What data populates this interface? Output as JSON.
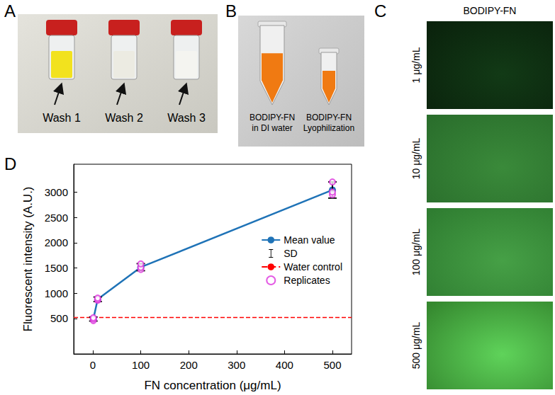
{
  "panels": {
    "A": {
      "letter": "A",
      "labels": [
        "Wash 1",
        "Wash 2",
        "Wash 3"
      ]
    },
    "B": {
      "letter": "B",
      "labels": [
        "BODIPY-FN in DI water",
        "BODIPY-FN Lyophilization"
      ]
    },
    "C": {
      "letter": "C",
      "title": "BODIPY-FN",
      "rows": [
        "1 μg/mL",
        "10 μg/mL",
        "100 μg/mL",
        "500 μg/mL"
      ]
    }
  },
  "chart_data": {
    "letter": "D",
    "type": "line",
    "x_label": "FN concentration (μg/mL)",
    "y_label": "Fluorescent intensity (A.U.)",
    "x": [
      1,
      10,
      100,
      500
    ],
    "series": [
      {
        "name": "Mean value",
        "color": "#1f73b7",
        "marker": "circle",
        "line_style": "solid",
        "values": [
          490,
          880,
          1515,
          3040
        ],
        "sd": [
          40,
          45,
          70,
          160
        ]
      }
    ],
    "error_bar_name": "SD",
    "error_bar_color": "#000000",
    "reference_line": {
      "name": "Water control",
      "value": 520,
      "color": "#ff0000",
      "line_style": "dashed"
    },
    "replicates": {
      "name": "Replicates",
      "color": "#dd33dd",
      "marker": "open_circle",
      "values": [
        [
          460,
          490,
          515
        ],
        [
          860,
          880,
          905
        ],
        [
          1470,
          1510,
          1580
        ],
        [
          2950,
          3000,
          3200
        ]
      ]
    },
    "xlim": [
      -40,
      540
    ],
    "xticks": [
      0,
      100,
      200,
      300,
      400,
      500
    ],
    "ylim": [
      -200,
      3550
    ],
    "yticks": [
      500,
      1000,
      1500,
      2000,
      2500,
      3000
    ],
    "legend": "right",
    "grid": false
  }
}
